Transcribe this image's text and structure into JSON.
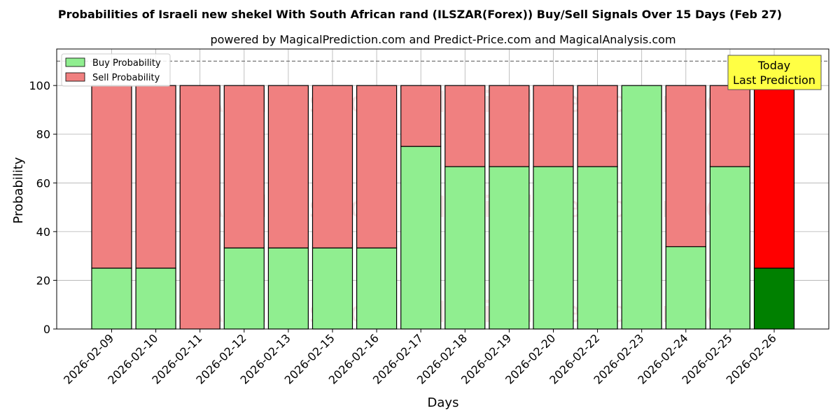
{
  "chart_data": {
    "type": "bar",
    "stacked": true,
    "title": "Probabilities of Israeli new shekel With South African rand (ILSZAR(Forex)) Buy/Sell Signals Over 15 Days (Feb 27)",
    "subtitle": "powered by MagicalPrediction.com and Predict-Price.com and MagicalAnalysis.com",
    "xlabel": "Days",
    "ylabel": "Probability",
    "ylim": [
      0,
      115
    ],
    "yticks": [
      0,
      20,
      40,
      60,
      80,
      100
    ],
    "reference_line": 110,
    "grid": true,
    "legend_position": "top-left",
    "categories": [
      "2026-02-09",
      "2026-02-10",
      "2026-02-11",
      "2026-02-12",
      "2026-02-13",
      "2026-02-15",
      "2026-02-16",
      "2026-02-17",
      "2026-02-18",
      "2026-02-19",
      "2026-02-20",
      "2026-02-22",
      "2026-02-23",
      "2026-02-24",
      "2026-02-25",
      "2026-02-26"
    ],
    "series": [
      {
        "name": "Buy Probability",
        "color": "#90ee90",
        "highlight_color": "#008000",
        "values": [
          25,
          25,
          0,
          33.3,
          33.3,
          33.3,
          33.3,
          75,
          66.7,
          66.7,
          66.7,
          66.7,
          100,
          33.8,
          66.7,
          25
        ]
      },
      {
        "name": "Sell Probability",
        "color": "#f08080",
        "highlight_color": "#ff0000",
        "values": [
          75,
          75,
          100,
          66.7,
          66.7,
          66.7,
          66.7,
          25,
          33.3,
          33.3,
          33.3,
          33.3,
          0,
          66.2,
          33.3,
          75
        ]
      }
    ],
    "highlight_index": 15,
    "annotation": {
      "line1": "Today",
      "line2": "Last Prediction",
      "background": "#ffff44"
    },
    "watermarks": [
      "MagicalAnalysis.com",
      "MagicalPrediction.com"
    ]
  }
}
